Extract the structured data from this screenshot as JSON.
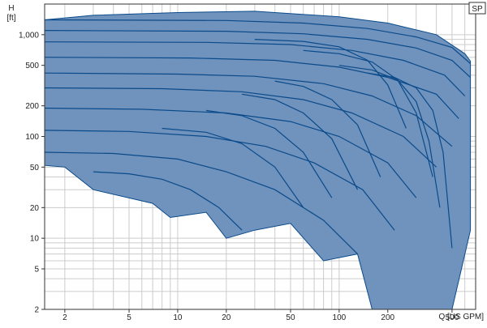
{
  "chart_data": {
    "type": "area",
    "title": "",
    "ylabel": "H",
    "ylabel_unit": "[ft]",
    "xlabel": "Q [US GPM]",
    "xscale": "log",
    "yscale": "log",
    "xlim": [
      1.5,
      700
    ],
    "ylim": [
      2,
      2000
    ],
    "grid": true,
    "legend": "none",
    "badge": "SP",
    "x_ticks": [
      {
        "value": 2,
        "label": "2"
      },
      {
        "value": 5,
        "label": "5"
      },
      {
        "value": 10,
        "label": "10"
      },
      {
        "value": 20,
        "label": "20"
      },
      {
        "value": 50,
        "label": "50"
      },
      {
        "value": 100,
        "label": "100"
      },
      {
        "value": 200,
        "label": "200"
      },
      {
        "value": 500,
        "label": "500"
      }
    ],
    "y_ticks": [
      {
        "value": 2,
        "label": "2"
      },
      {
        "value": 5,
        "label": "5"
      },
      {
        "value": 10,
        "label": "10"
      },
      {
        "value": 20,
        "label": "20"
      },
      {
        "value": 50,
        "label": "50"
      },
      {
        "value": 100,
        "label": "100"
      },
      {
        "value": 200,
        "label": "200"
      },
      {
        "value": 500,
        "label": "500"
      },
      {
        "value": 1000,
        "label": "1,000"
      }
    ],
    "colors": {
      "fill": "#6f93bd",
      "line": "#0b4a8a",
      "grid": "#cccccc",
      "axis": "#333333",
      "text": "#222222"
    },
    "envelope": {
      "upper": [
        [
          1.5,
          1400
        ],
        [
          3,
          1550
        ],
        [
          10,
          1650
        ],
        [
          30,
          1700
        ],
        [
          100,
          1500
        ],
        [
          200,
          1300
        ],
        [
          400,
          1000
        ],
        [
          600,
          650
        ],
        [
          650,
          550
        ]
      ],
      "lower": [
        [
          1.5,
          52
        ],
        [
          2,
          50
        ],
        [
          3,
          30
        ],
        [
          7,
          22
        ],
        [
          9,
          16
        ],
        [
          15,
          18
        ],
        [
          20,
          10
        ],
        [
          30,
          12
        ],
        [
          50,
          14
        ],
        [
          80,
          6
        ],
        [
          130,
          7
        ],
        [
          160,
          2
        ],
        [
          350,
          2
        ],
        [
          500,
          2
        ],
        [
          650,
          12
        ]
      ]
    },
    "series": [
      {
        "x": [
          1.5,
          20,
          60,
          150,
          300,
          500,
          650
        ],
        "y": [
          1400,
          1380,
          1300,
          1150,
          950,
          750,
          520
        ]
      },
      {
        "x": [
          1.5,
          20,
          60,
          150,
          300,
          500,
          650
        ],
        "y": [
          1100,
          1080,
          1020,
          900,
          740,
          560,
          380
        ]
      },
      {
        "x": [
          1.5,
          15,
          50,
          120,
          250,
          450,
          600
        ],
        "y": [
          850,
          840,
          800,
          700,
          560,
          400,
          250
        ]
      },
      {
        "x": [
          1.5,
          12,
          40,
          100,
          200,
          400,
          550
        ],
        "y": [
          600,
          590,
          560,
          480,
          380,
          260,
          150
        ]
      },
      {
        "x": [
          1.5,
          10,
          30,
          80,
          160,
          300,
          500
        ],
        "y": [
          420,
          410,
          390,
          330,
          250,
          160,
          80
        ]
      },
      {
        "x": [
          1.5,
          8,
          25,
          60,
          120,
          250,
          400
        ],
        "y": [
          300,
          295,
          275,
          230,
          170,
          100,
          50
        ]
      },
      {
        "x": [
          1.5,
          6,
          20,
          50,
          100,
          200,
          300
        ],
        "y": [
          190,
          185,
          170,
          140,
          100,
          55,
          25
        ]
      },
      {
        "x": [
          1.5,
          5,
          15,
          35,
          70,
          140,
          220
        ],
        "y": [
          115,
          112,
          100,
          80,
          55,
          30,
          12
        ]
      },
      {
        "x": [
          1.5,
          4,
          10,
          20,
          40,
          80,
          130
        ],
        "y": [
          70,
          68,
          60,
          45,
          30,
          15,
          7
        ]
      },
      {
        "x": [
          3,
          5,
          8,
          12,
          18,
          25
        ],
        "y": [
          45,
          43,
          38,
          30,
          20,
          12
        ]
      },
      {
        "x": [
          30,
          60,
          100,
          150,
          200,
          260
        ],
        "y": [
          900,
          860,
          760,
          560,
          320,
          120
        ]
      },
      {
        "x": [
          60,
          100,
          160,
          230,
          300,
          380
        ],
        "y": [
          700,
          650,
          540,
          360,
          170,
          40
        ]
      },
      {
        "x": [
          100,
          160,
          230,
          300,
          360,
          420
        ],
        "y": [
          500,
          450,
          360,
          220,
          90,
          20
        ]
      },
      {
        "x": [
          150,
          220,
          300,
          380,
          440,
          500
        ],
        "y": [
          420,
          380,
          300,
          180,
          70,
          8
        ]
      },
      {
        "x": [
          8,
          15,
          25,
          40,
          60
        ],
        "y": [
          120,
          110,
          85,
          50,
          20
        ]
      },
      {
        "x": [
          15,
          25,
          40,
          60,
          90
        ],
        "y": [
          180,
          160,
          120,
          70,
          25
        ]
      },
      {
        "x": [
          25,
          40,
          60,
          90,
          130
        ],
        "y": [
          260,
          230,
          170,
          95,
          30
        ]
      },
      {
        "x": [
          40,
          60,
          90,
          130,
          180
        ],
        "y": [
          350,
          310,
          230,
          130,
          40
        ]
      }
    ]
  }
}
